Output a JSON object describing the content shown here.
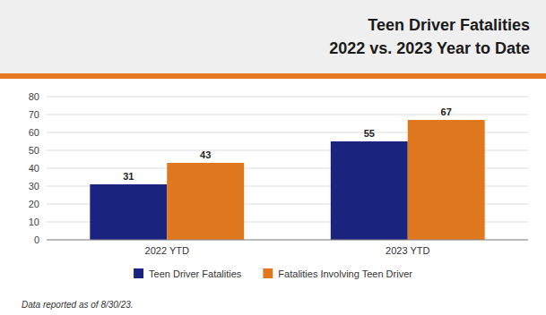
{
  "chart_data": {
    "type": "bar",
    "title": "Teen Driver Fatalities",
    "subtitle": "2022 vs. 2023 Year to Date",
    "categories": [
      "2022 YTD",
      "2023 YTD"
    ],
    "series": [
      {
        "name": "Teen Driver Fatalities",
        "color": "#1a237e",
        "values": [
          31,
          55
        ]
      },
      {
        "name": "Fatalities Involving Teen Driver",
        "color": "#e07820",
        "values": [
          43,
          67
        ]
      }
    ],
    "ylim": [
      0,
      80
    ],
    "yticks": [
      0,
      10,
      20,
      30,
      40,
      50,
      60,
      70,
      80
    ],
    "grid": true,
    "data_labels": true,
    "legend": "bottom",
    "annotations": [
      "Data reported as of 8/30/23."
    ]
  }
}
